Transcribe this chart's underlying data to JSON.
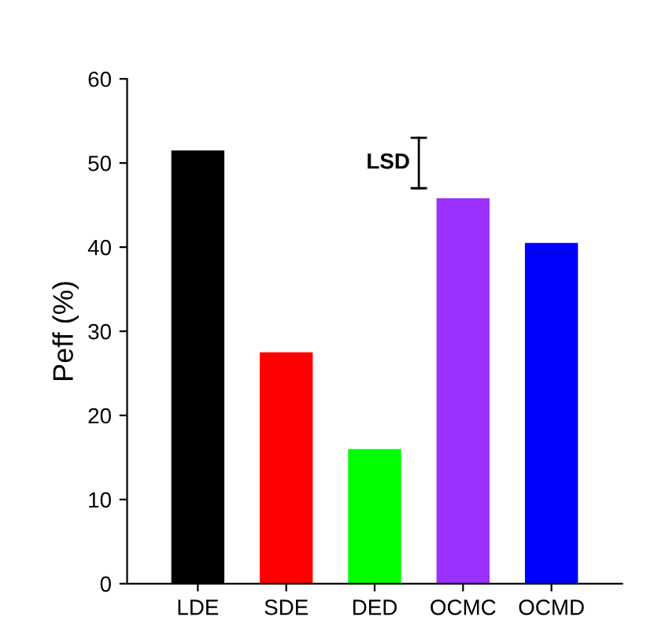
{
  "chart_data": {
    "type": "bar",
    "ylabel": "Peff (%)",
    "categories": [
      "LDE",
      "SDE",
      "DED",
      "OCMC",
      "OCMD"
    ],
    "values": [
      51.5,
      27.5,
      16,
      45.8,
      40.5
    ],
    "colors": [
      "#000000",
      "#ff0000",
      "#00ff00",
      "#9b30ff",
      "#0000ff"
    ],
    "ylim": [
      0,
      60
    ],
    "yticks": [
      0,
      10,
      20,
      30,
      40,
      50,
      60
    ],
    "grid": false,
    "annotations": [
      "LSD"
    ]
  }
}
